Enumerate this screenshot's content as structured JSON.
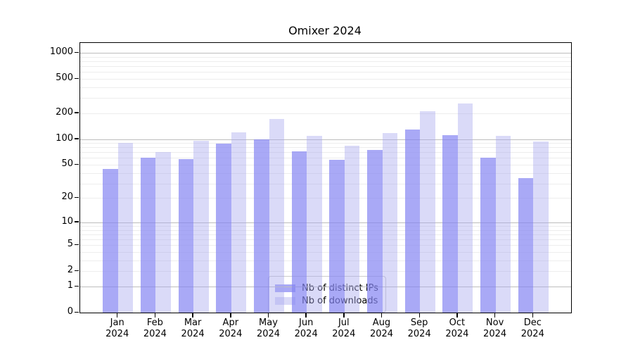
{
  "title": "Omixer 2024",
  "chart_data": {
    "type": "bar",
    "title": "Omixer 2024",
    "categories": [
      "Jan",
      "Feb",
      "Mar",
      "Apr",
      "May",
      "Jun",
      "Jul",
      "Aug",
      "Sep",
      "Oct",
      "Nov",
      "Dec"
    ],
    "year": "2024",
    "series": [
      {
        "name": "Nb of distinct IPs",
        "color": "rgba(133,133,242,0.70)",
        "values": [
          45,
          61,
          58,
          89,
          100,
          72,
          57,
          75,
          130,
          111,
          61,
          35
        ]
      },
      {
        "name": "Nb of downloads",
        "color": "rgba(167,167,238,0.42)",
        "values": [
          91,
          71,
          95,
          120,
          170,
          110,
          83,
          118,
          210,
          258,
          110,
          94
        ]
      }
    ],
    "xlabel": "",
    "ylabel": "",
    "yscale": "log1p",
    "ylim": [
      0,
      1300
    ],
    "yticks": [
      0,
      1,
      2,
      5,
      10,
      20,
      50,
      100,
      200,
      500,
      1000
    ],
    "grid_major": [
      1,
      10,
      100,
      1000
    ],
    "grid": true,
    "legend_position": "lower center",
    "colors": {
      "major_grid": "#bdbdbd",
      "minor_grid": "#ededed",
      "spine": "#000000"
    }
  }
}
